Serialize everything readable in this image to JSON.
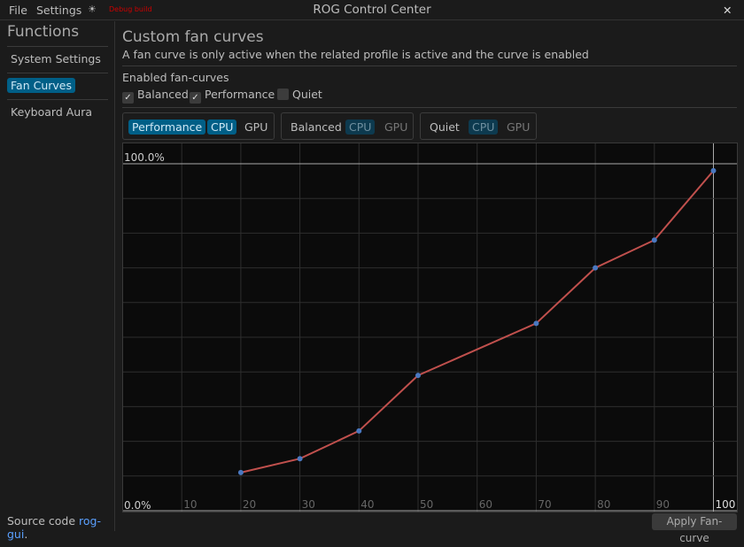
{
  "menu": {
    "file": "File",
    "settings": "Settings",
    "theme_icon": "sun-icon",
    "debug": "Debug build",
    "title": "ROG Control Center",
    "close": "✕"
  },
  "sidebar": {
    "heading": "Functions",
    "items": [
      {
        "label": "System Settings"
      },
      {
        "label": "Fan Curves"
      },
      {
        "label": "Keyboard Aura"
      }
    ],
    "source_prefix": "Source code ",
    "source_link": "rog-gui",
    "source_suffix": "."
  },
  "main": {
    "title": "Custom fan curves",
    "description": "A fan curve is only active when the related profile is active and the curve is enabled",
    "enabled_label": "Enabled fan-curves",
    "checkboxes": [
      {
        "label": "Balanced",
        "checked": true
      },
      {
        "label": "Performance",
        "checked": true
      },
      {
        "label": "Quiet",
        "checked": false
      }
    ],
    "groups": [
      {
        "profile": "Performance",
        "cpu": "CPU",
        "gpu": "GPU"
      },
      {
        "profile": "Balanced",
        "cpu": "CPU",
        "gpu": "GPU"
      },
      {
        "profile": "Quiet",
        "cpu": "CPU",
        "gpu": "GPU"
      }
    ],
    "apply": "Apply Fan-curve"
  },
  "chart_data": {
    "type": "line",
    "x": [
      20,
      30,
      40,
      50,
      70,
      80,
      90,
      100
    ],
    "y": [
      11,
      15,
      23,
      39,
      54,
      70,
      78,
      98
    ],
    "xlim": [
      0,
      100
    ],
    "ylim": [
      0,
      100
    ],
    "x_ticks": [
      "10",
      "20",
      "30",
      "40",
      "50",
      "60",
      "70",
      "80",
      "90",
      "100"
    ],
    "y_top_label": "100.0%",
    "y_bottom_label": "0.0%",
    "grid": true,
    "line_color": "#c0504d",
    "point_color": "#4a78c0"
  }
}
